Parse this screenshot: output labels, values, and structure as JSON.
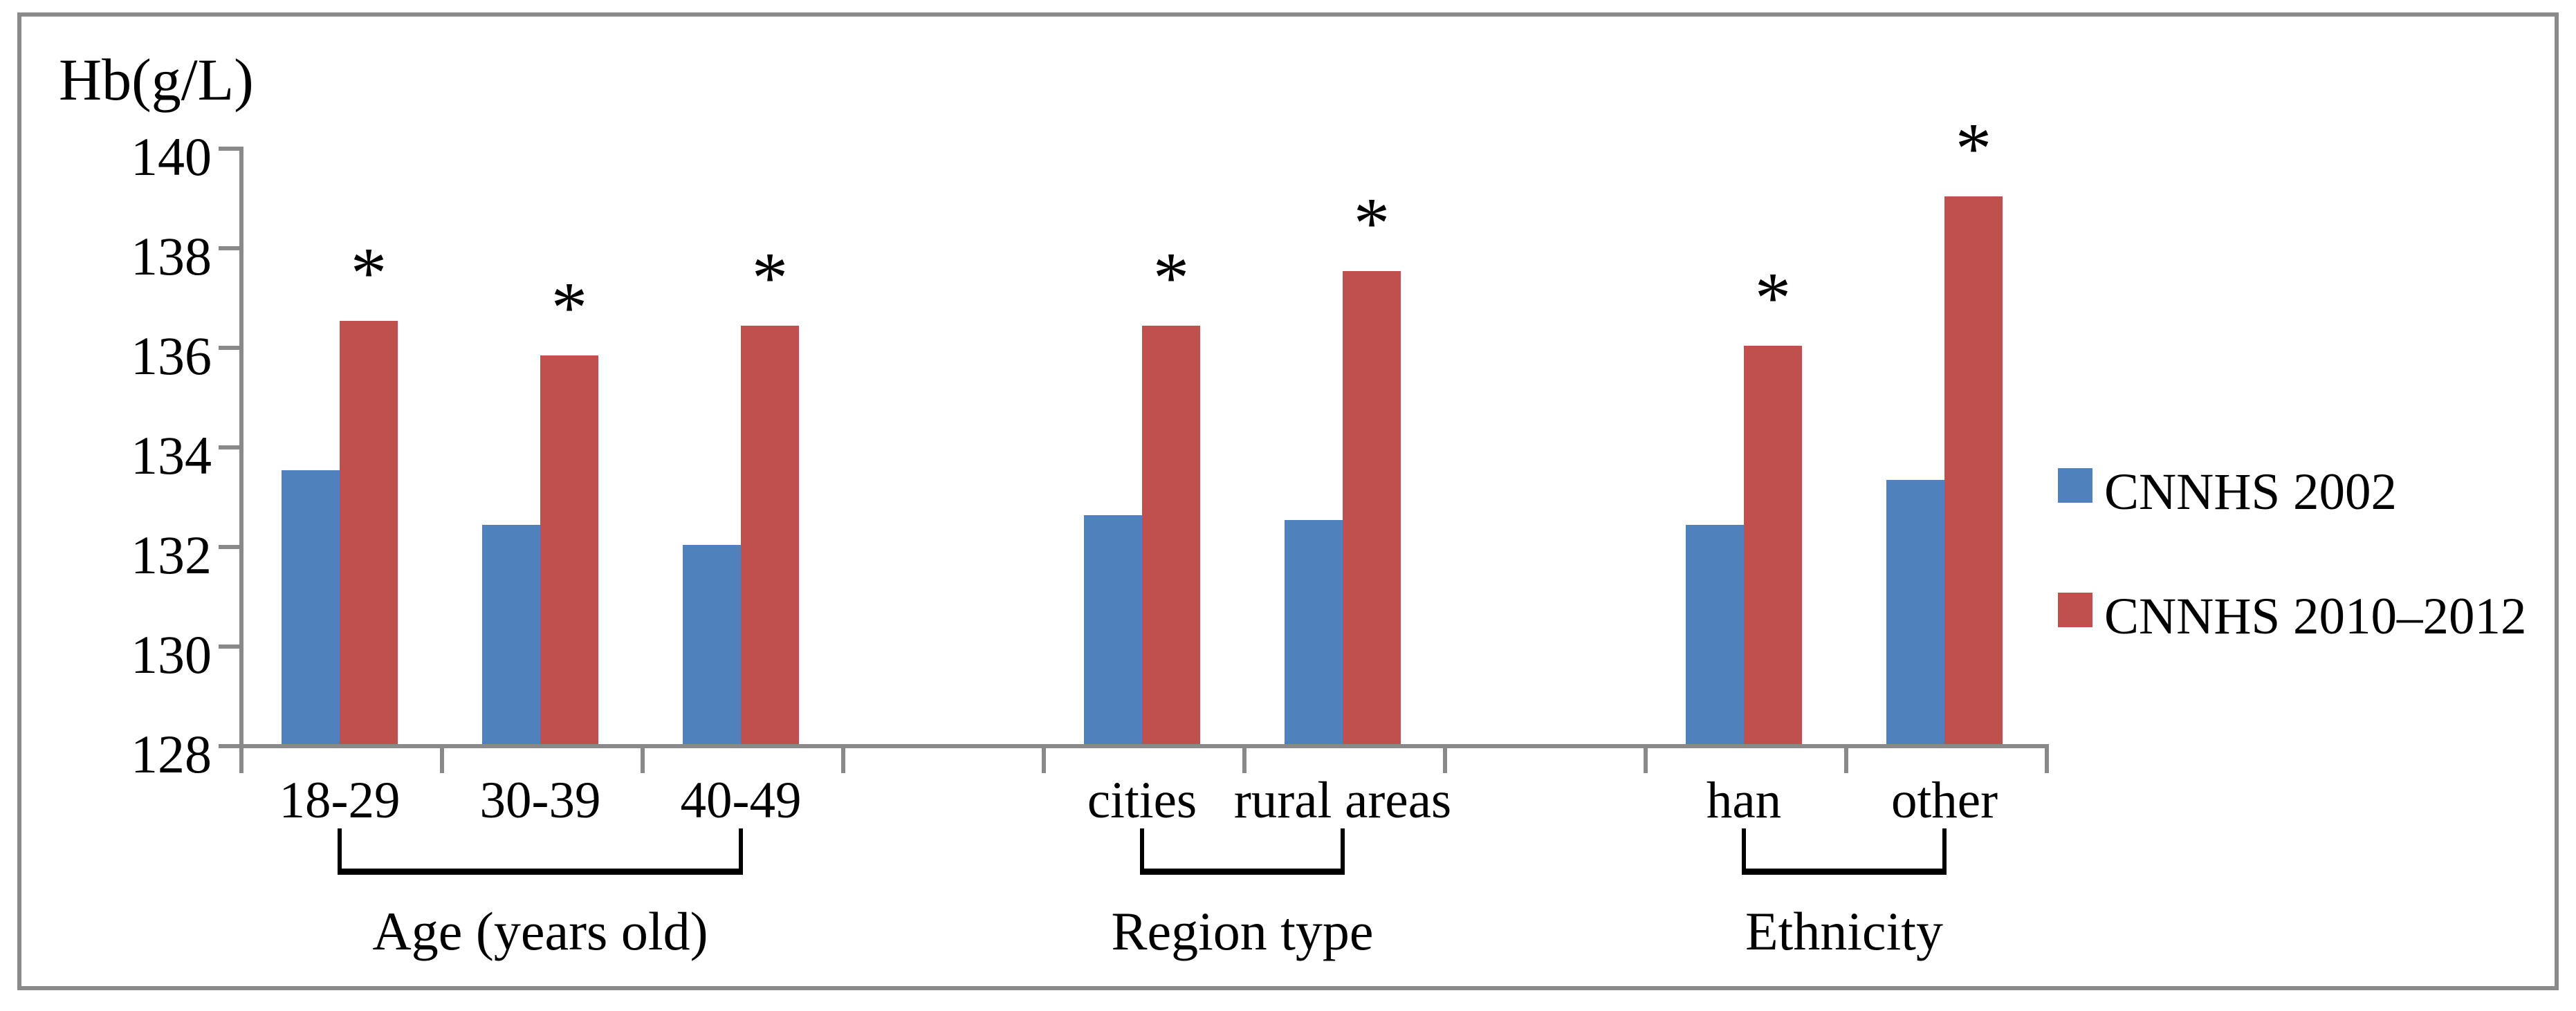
{
  "figure": {
    "y_axis_title": "Hb(g/L)",
    "significance_marker": "*",
    "colors": {
      "series_2002": "#4f81bd",
      "series_2010_2012": "#c0504d",
      "axis_gray": "#898989",
      "frame_gray": "#8a8a8a",
      "text_black": "#000000"
    }
  },
  "chart_data": {
    "type": "bar",
    "title": "",
    "xlabel": "",
    "ylabel": "Hb(g/L)",
    "ylim": [
      128,
      140
    ],
    "yticks": [
      128,
      130,
      132,
      134,
      136,
      138,
      140
    ],
    "grid": false,
    "legend_position": "right",
    "categories": [
      "18-29",
      "30-39",
      "40-49",
      "cities",
      "rural areas",
      "han",
      "other"
    ],
    "groups": [
      {
        "label": "Age (years old)",
        "first_category": 0,
        "last_category": 2
      },
      {
        "label": "Region type",
        "first_category": 3,
        "last_category": 4
      },
      {
        "label": "Ethnicity",
        "first_category": 5,
        "last_category": 6
      }
    ],
    "series": [
      {
        "name": "CNNHS 2002",
        "color": "#4f81bd",
        "values": [
          133.5,
          132.4,
          132.0,
          132.6,
          132.5,
          132.4,
          133.3
        ],
        "significance": [
          "",
          "",
          "",
          "",
          "",
          "",
          ""
        ]
      },
      {
        "name": "CNNHS 2010–2012",
        "color": "#c0504d",
        "values": [
          136.5,
          135.8,
          136.4,
          136.4,
          137.5,
          136.0,
          139.0
        ],
        "significance": [
          "*",
          "*",
          "*",
          "*",
          "*",
          "*",
          "*"
        ]
      }
    ]
  }
}
